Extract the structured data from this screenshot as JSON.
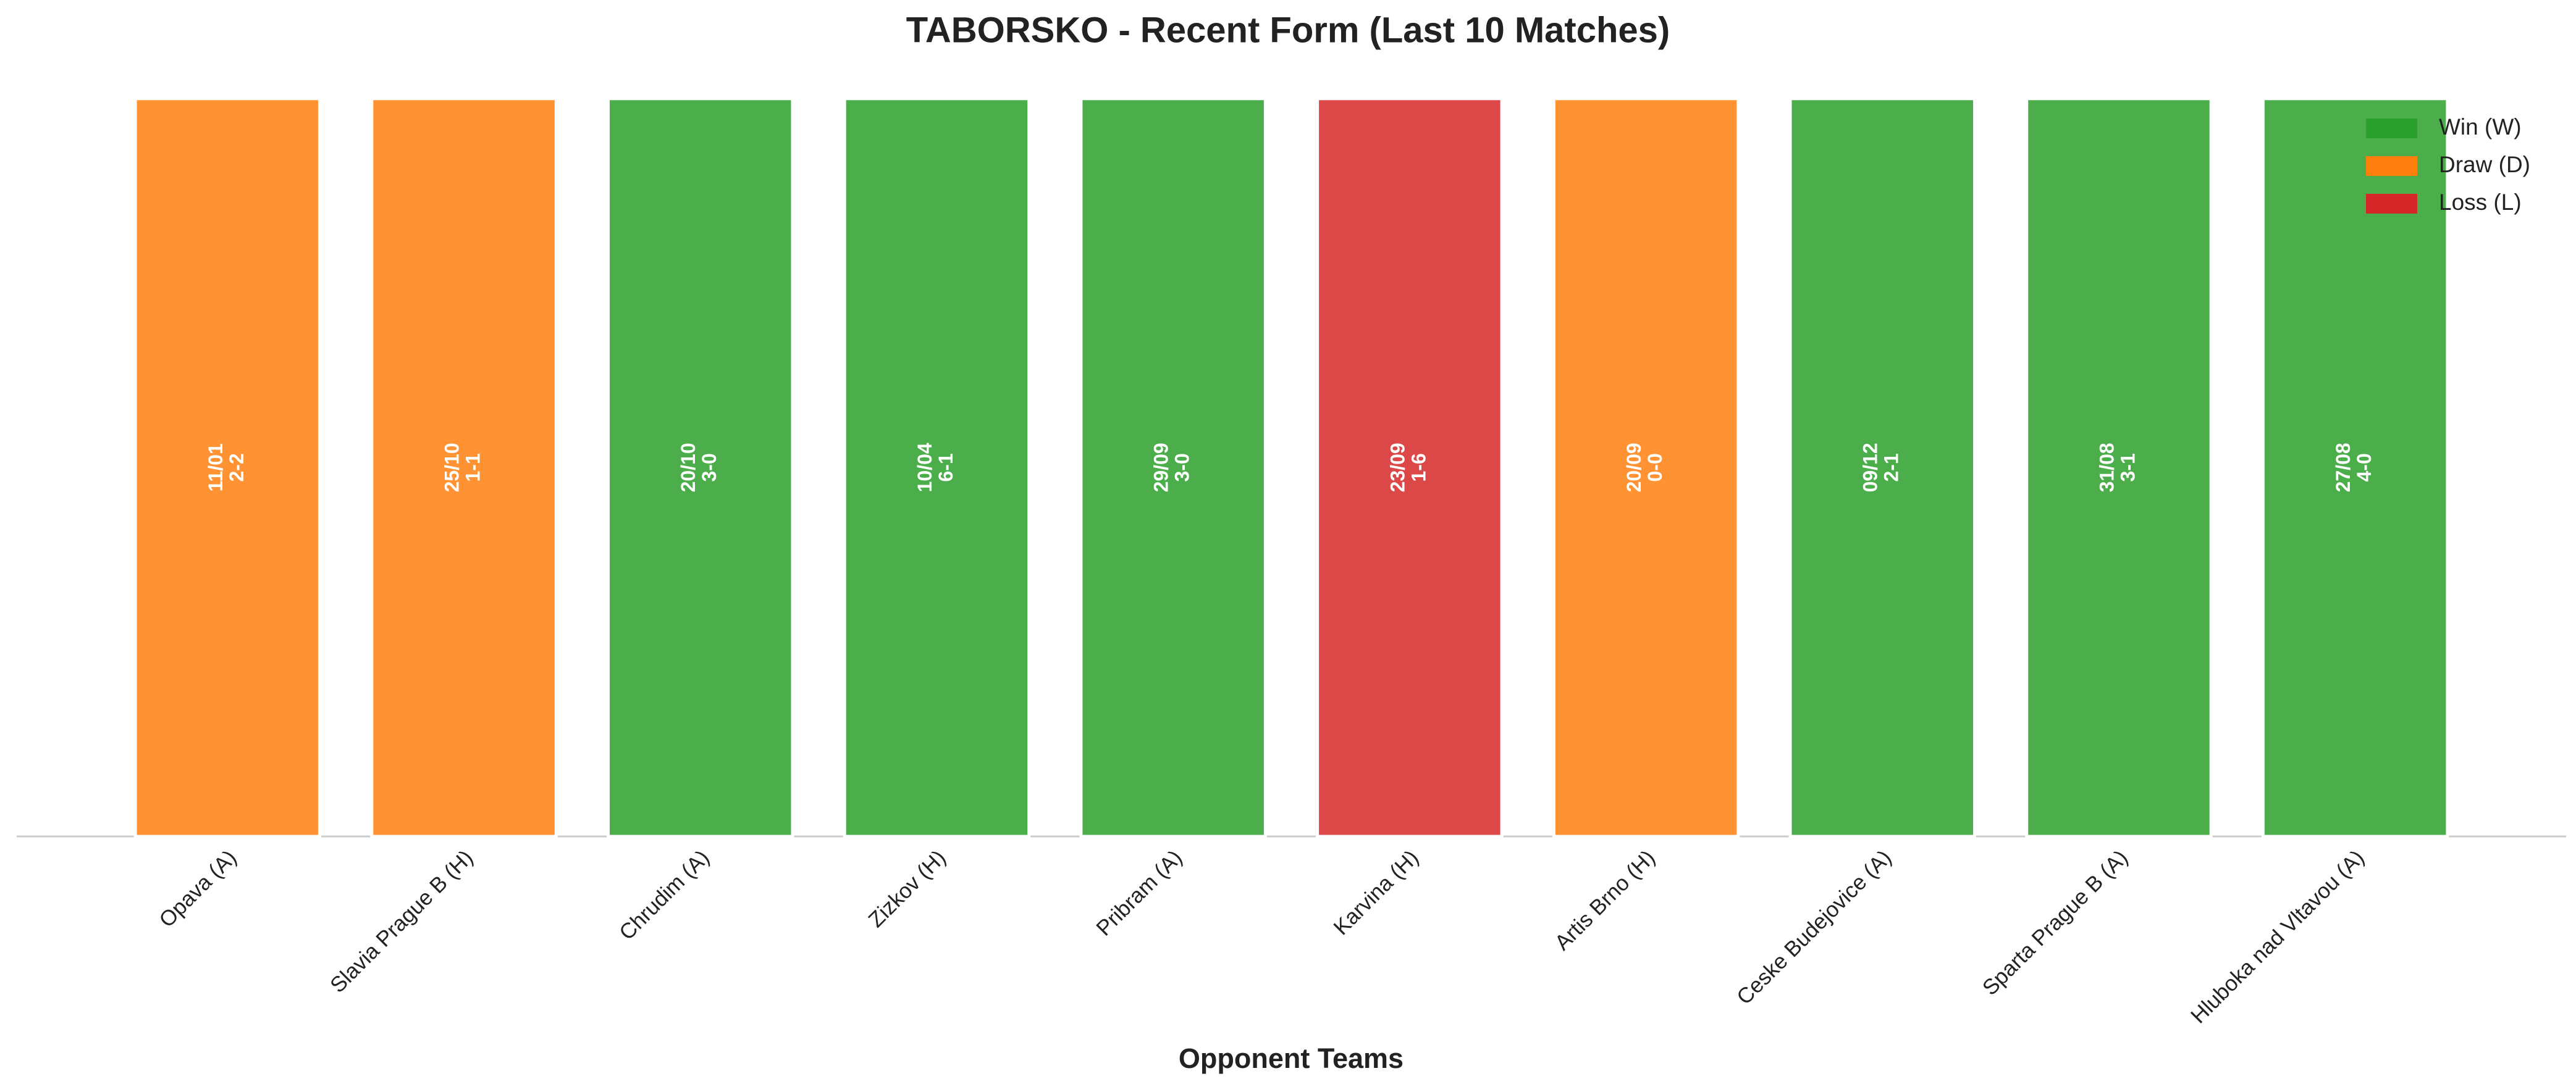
{
  "chart_data": {
    "type": "bar",
    "title": "TABORSKO - Recent Form (Last 10 Matches)",
    "x_label": "Opponent Teams",
    "categories": [
      "Opava (A)",
      "Slavia Prague B (H)",
      "Chrudim (A)",
      "Zizkov (H)",
      "Pribram (A)",
      "Karvina (H)",
      "Artis Brno (H)",
      "Ceske Budejovice (A)",
      "Sparta Prague B (A)",
      "Hluboka nad Vltavou (A)"
    ],
    "values": [
      1,
      1,
      1,
      1,
      1,
      1,
      1,
      1,
      1,
      1
    ],
    "colors": [
      "#ff7f0e",
      "#ff7f0e",
      "#2ca02c",
      "#2ca02c",
      "#2ca02c",
      "#d62728",
      "#ff7f0e",
      "#2ca02c",
      "#2ca02c",
      "#2ca02c"
    ],
    "annotations": [
      {
        "date": "11/01",
        "score": "2-2"
      },
      {
        "date": "25/10",
        "score": "1-1"
      },
      {
        "date": "20/10",
        "score": "3-0"
      },
      {
        "date": "10/04",
        "score": "6-1"
      },
      {
        "date": "29/09",
        "score": "3-0"
      },
      {
        "date": "23/09",
        "score": "1-6"
      },
      {
        "date": "20/09",
        "score": "0-0"
      },
      {
        "date": "09/12",
        "score": "2-1"
      },
      {
        "date": "31/08",
        "score": "3-1"
      },
      {
        "date": "27/08",
        "score": "4-0"
      }
    ],
    "legend": [
      {
        "name": "Win (W)",
        "color": "#2ca02c"
      },
      {
        "name": "Draw (D)",
        "color": "#ff7f0e"
      },
      {
        "name": "Loss (L)",
        "color": "#d62728"
      }
    ],
    "legend_position": "upper right",
    "ylim": [
      0,
      1.05
    ]
  }
}
